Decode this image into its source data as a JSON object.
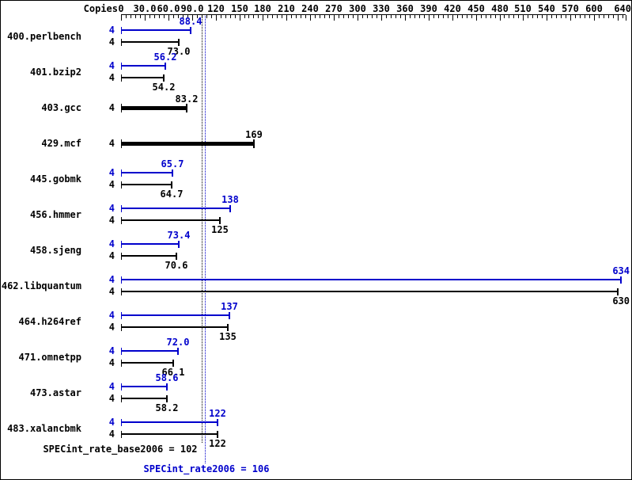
{
  "colors": {
    "accent_blue": "#0000cc",
    "black": "#000000",
    "background": "#ffffff"
  },
  "header": {
    "copies_label": "Copies"
  },
  "footer": {
    "base_text": "SPECint_rate_base2006 = 102",
    "peak_text": "SPECint_rate2006 = 106"
  },
  "chart_data": {
    "type": "bar",
    "orientation": "horizontal",
    "title": "",
    "xlabel": "",
    "ylabel": "Copies",
    "legend": "none",
    "axis": {
      "min": 0,
      "max": 640,
      "minor_step": 6,
      "major_step": 30,
      "ticks": [
        {
          "value": 0,
          "label": "0"
        },
        {
          "value": 30,
          "label": "30.0"
        },
        {
          "value": 60,
          "label": "60.0"
        },
        {
          "value": 90,
          "label": "90.0"
        },
        {
          "value": 120,
          "label": "120"
        },
        {
          "value": 150,
          "label": "150"
        },
        {
          "value": 180,
          "label": "180"
        },
        {
          "value": 210,
          "label": "210"
        },
        {
          "value": 240,
          "label": "240"
        },
        {
          "value": 270,
          "label": "270"
        },
        {
          "value": 300,
          "label": "300"
        },
        {
          "value": 330,
          "label": "330"
        },
        {
          "value": 360,
          "label": "360"
        },
        {
          "value": 390,
          "label": "390"
        },
        {
          "value": 420,
          "label": "420"
        },
        {
          "value": 450,
          "label": "450"
        },
        {
          "value": 480,
          "label": "480"
        },
        {
          "value": 510,
          "label": "510"
        },
        {
          "value": 540,
          "label": "540"
        },
        {
          "value": 570,
          "label": "570"
        },
        {
          "value": 600,
          "label": "600"
        },
        {
          "value": 640,
          "label": "640"
        }
      ]
    },
    "reference_lines": [
      {
        "value": 102,
        "color": "#000000",
        "style": "dotted",
        "label": "SPECint_rate_base2006 = 102"
      },
      {
        "value": 106,
        "color": "#0000cc",
        "style": "dotted",
        "label": "SPECint_rate2006 = 106"
      }
    ],
    "benchmarks": [
      {
        "name": "400.perlbench",
        "copies": 4,
        "bars": [
          {
            "type": "peak",
            "value": 88.4,
            "label": "88.4"
          },
          {
            "type": "base",
            "value": 73.0,
            "label": "73.0"
          }
        ]
      },
      {
        "name": "401.bzip2",
        "copies": 4,
        "bars": [
          {
            "type": "peak",
            "value": 56.2,
            "label": "56.2"
          },
          {
            "type": "base",
            "value": 54.2,
            "label": "54.2"
          }
        ]
      },
      {
        "name": "403.gcc",
        "copies": 4,
        "bars": [
          {
            "type": "basepeak",
            "value": 83.2,
            "label": "83.2"
          }
        ]
      },
      {
        "name": "429.mcf",
        "copies": 4,
        "bars": [
          {
            "type": "basepeak",
            "value": 169,
            "label": "169"
          }
        ]
      },
      {
        "name": "445.gobmk",
        "copies": 4,
        "bars": [
          {
            "type": "peak",
            "value": 65.7,
            "label": "65.7"
          },
          {
            "type": "base",
            "value": 64.7,
            "label": "64.7"
          }
        ]
      },
      {
        "name": "456.hmmer",
        "copies": 4,
        "bars": [
          {
            "type": "peak",
            "value": 138,
            "label": "138"
          },
          {
            "type": "base",
            "value": 125,
            "label": "125"
          }
        ]
      },
      {
        "name": "458.sjeng",
        "copies": 4,
        "bars": [
          {
            "type": "peak",
            "value": 73.4,
            "label": "73.4"
          },
          {
            "type": "base",
            "value": 70.6,
            "label": "70.6"
          }
        ]
      },
      {
        "name": "462.libquantum",
        "copies": 4,
        "bars": [
          {
            "type": "peak",
            "value": 634,
            "label": "634"
          },
          {
            "type": "base",
            "value": 630,
            "label": "630"
          }
        ]
      },
      {
        "name": "464.h264ref",
        "copies": 4,
        "bars": [
          {
            "type": "peak",
            "value": 137,
            "label": "137"
          },
          {
            "type": "base",
            "value": 135,
            "label": "135"
          }
        ]
      },
      {
        "name": "471.omnetpp",
        "copies": 4,
        "bars": [
          {
            "type": "peak",
            "value": 72.0,
            "label": "72.0"
          },
          {
            "type": "base",
            "value": 66.1,
            "label": "66.1"
          }
        ]
      },
      {
        "name": "473.astar",
        "copies": 4,
        "bars": [
          {
            "type": "peak",
            "value": 58.6,
            "label": "58.6"
          },
          {
            "type": "base",
            "value": 58.2,
            "label": "58.2"
          }
        ]
      },
      {
        "name": "483.xalancbmk",
        "copies": 4,
        "bars": [
          {
            "type": "peak",
            "value": 122,
            "label": "122"
          },
          {
            "type": "base",
            "value": 122,
            "label": "122"
          }
        ]
      }
    ]
  }
}
